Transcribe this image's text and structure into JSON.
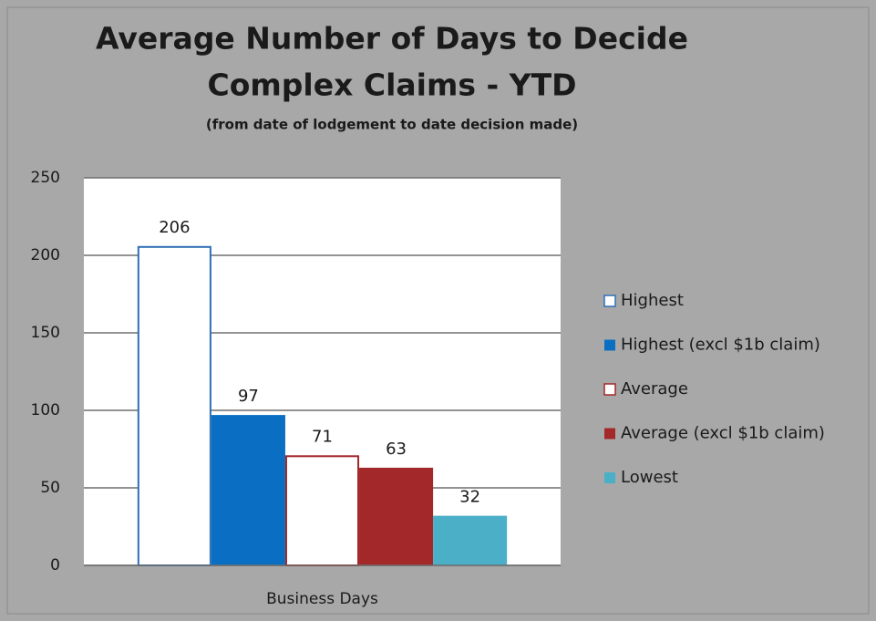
{
  "chart_data": {
    "type": "bar",
    "title": [
      "Average Number of Days to Decide",
      "Complex Claims - YTD"
    ],
    "subtitle": "(from date of lodgement to date decision made)",
    "categories": [
      "Business Days"
    ],
    "series": [
      {
        "name": "Highest",
        "color": "#2f6fb5",
        "outline": true,
        "values": [
          206
        ]
      },
      {
        "name": "Highest (excl $1b claim)",
        "color": "#0a6fc2",
        "outline": false,
        "values": [
          97
        ]
      },
      {
        "name": "Average",
        "color": "#a3282a",
        "outline": true,
        "values": [
          71
        ]
      },
      {
        "name": "Average (excl $1b claim)",
        "color": "#a3282a",
        "outline": false,
        "values": [
          63
        ]
      },
      {
        "name": "Lowest",
        "color": "#4bafc8",
        "outline": false,
        "values": [
          32
        ]
      }
    ],
    "ylim": [
      0,
      250
    ],
    "yticks": [
      0,
      50,
      100,
      150,
      200,
      250
    ],
    "grid": true,
    "legend": "right"
  }
}
